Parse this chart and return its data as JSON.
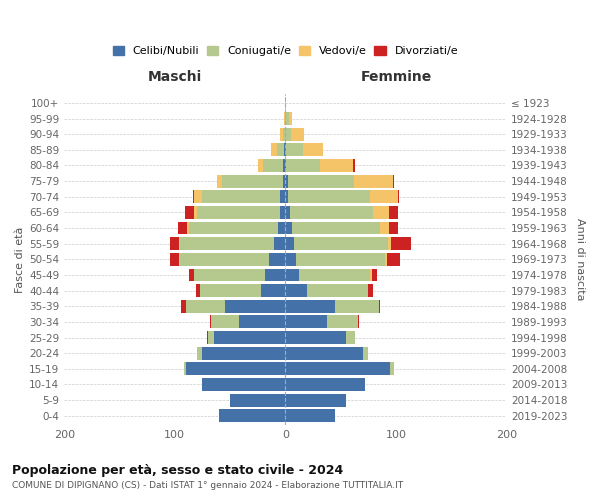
{
  "age_groups": [
    "0-4",
    "5-9",
    "10-14",
    "15-19",
    "20-24",
    "25-29",
    "30-34",
    "35-39",
    "40-44",
    "45-49",
    "50-54",
    "55-59",
    "60-64",
    "65-69",
    "70-74",
    "75-79",
    "80-84",
    "85-89",
    "90-94",
    "95-99",
    "100+"
  ],
  "birth_years": [
    "2019-2023",
    "2014-2018",
    "2009-2013",
    "2004-2008",
    "1999-2003",
    "1994-1998",
    "1989-1993",
    "1984-1988",
    "1979-1983",
    "1974-1978",
    "1969-1973",
    "1964-1968",
    "1959-1963",
    "1954-1958",
    "1949-1953",
    "1944-1948",
    "1939-1943",
    "1934-1938",
    "1929-1933",
    "1924-1928",
    "≤ 1923"
  ],
  "colors": {
    "celibe": "#4472a8",
    "coniugato": "#b5c98e",
    "vedovo": "#f5c469",
    "divorziato": "#cc2222"
  },
  "maschi": {
    "celibe": [
      60,
      50,
      75,
      90,
      75,
      65,
      42,
      55,
      22,
      18,
      15,
      10,
      7,
      5,
      5,
      2,
      2,
      1,
      0,
      0,
      0
    ],
    "coniugato": [
      0,
      0,
      0,
      2,
      5,
      5,
      25,
      35,
      55,
      65,
      80,
      85,
      80,
      75,
      70,
      55,
      18,
      7,
      2,
      0,
      0
    ],
    "vedovo": [
      0,
      0,
      0,
      0,
      0,
      0,
      0,
      0,
      0,
      0,
      1,
      1,
      2,
      3,
      8,
      5,
      5,
      5,
      3,
      1,
      0
    ],
    "divorziato": [
      0,
      0,
      0,
      0,
      0,
      1,
      1,
      4,
      4,
      4,
      8,
      8,
      8,
      8,
      1,
      0,
      0,
      0,
      0,
      0,
      0
    ]
  },
  "femmine": {
    "celibe": [
      45,
      55,
      72,
      95,
      70,
      55,
      38,
      45,
      20,
      12,
      10,
      8,
      6,
      4,
      2,
      2,
      1,
      1,
      0,
      0,
      0
    ],
    "coniugato": [
      0,
      0,
      0,
      3,
      5,
      8,
      28,
      40,
      55,
      65,
      80,
      85,
      80,
      75,
      75,
      60,
      30,
      15,
      5,
      3,
      0
    ],
    "vedovo": [
      0,
      0,
      0,
      0,
      0,
      0,
      0,
      0,
      0,
      1,
      2,
      3,
      8,
      15,
      25,
      35,
      30,
      18,
      12,
      3,
      1
    ],
    "divorziato": [
      0,
      0,
      0,
      0,
      0,
      0,
      1,
      1,
      4,
      5,
      12,
      18,
      8,
      8,
      1,
      1,
      2,
      0,
      0,
      0,
      0
    ]
  },
  "title": "Popolazione per età, sesso e stato civile - 2024",
  "subtitle": "COMUNE DI DIPIGNANO (CS) - Dati ISTAT 1° gennaio 2024 - Elaborazione TUTTITALIA.IT",
  "xlabel_maschi": "Maschi",
  "xlabel_femmine": "Femmine",
  "ylabel_left": "Fasce di età",
  "ylabel_right": "Anni di nascita",
  "xlim": 200,
  "background_color": "#ffffff",
  "grid_color": "#cccccc"
}
